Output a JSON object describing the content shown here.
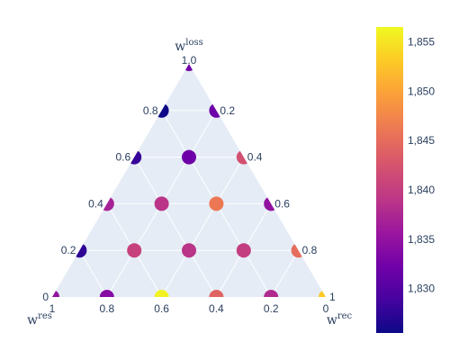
{
  "chart_data": {
    "type": "scatter",
    "subtype": "ternary",
    "axes": {
      "a": {
        "title_base": "w",
        "title_sup": "loss",
        "ticks": [
          "1.0",
          "0.8",
          "0.6",
          "0.4",
          "0.2",
          "0"
        ]
      },
      "b": {
        "title_base": "w",
        "title_sup": "res",
        "ticks": [
          "1",
          "0.8",
          "0.6",
          "0.4",
          "0.2",
          "0"
        ]
      },
      "c": {
        "title_base": "w",
        "title_sup": "rec",
        "ticks": [
          "0.2",
          "0.4",
          "0.6",
          "0.8",
          "1"
        ]
      }
    },
    "points": [
      {
        "a": 1.0,
        "b": 0.0,
        "c": 0.0,
        "value": 1.8325
      },
      {
        "a": 0.8,
        "b": 0.2,
        "c": 0.0,
        "value": 1.8255
      },
      {
        "a": 0.8,
        "b": 0.0,
        "c": 0.2,
        "value": 1.832
      },
      {
        "a": 0.6,
        "b": 0.4,
        "c": 0.0,
        "value": 1.828
      },
      {
        "a": 0.6,
        "b": 0.2,
        "c": 0.2,
        "value": 1.832
      },
      {
        "a": 0.6,
        "b": 0.0,
        "c": 0.4,
        "value": 1.842
      },
      {
        "a": 0.4,
        "b": 0.6,
        "c": 0.0,
        "value": 1.837
      },
      {
        "a": 0.4,
        "b": 0.4,
        "c": 0.2,
        "value": 1.839
      },
      {
        "a": 0.4,
        "b": 0.2,
        "c": 0.4,
        "value": 1.846
      },
      {
        "a": 0.4,
        "b": 0.0,
        "c": 0.6,
        "value": 1.835
      },
      {
        "a": 0.2,
        "b": 0.8,
        "c": 0.0,
        "value": 1.8275
      },
      {
        "a": 0.2,
        "b": 0.6,
        "c": 0.2,
        "value": 1.8405
      },
      {
        "a": 0.2,
        "b": 0.4,
        "c": 0.4,
        "value": 1.839
      },
      {
        "a": 0.2,
        "b": 0.2,
        "c": 0.6,
        "value": 1.84
      },
      {
        "a": 0.2,
        "b": 0.0,
        "c": 0.8,
        "value": 1.845
      },
      {
        "a": 0.0,
        "b": 1.0,
        "c": 0.0,
        "value": 1.835
      },
      {
        "a": 0.0,
        "b": 0.8,
        "c": 0.2,
        "value": 1.834
      },
      {
        "a": 0.0,
        "b": 0.6,
        "c": 0.4,
        "value": 1.856
      },
      {
        "a": 0.0,
        "b": 0.4,
        "c": 0.6,
        "value": 1.844
      },
      {
        "a": 0.0,
        "b": 0.2,
        "c": 0.8,
        "value": 1.838
      },
      {
        "a": 0.0,
        "b": 0.0,
        "c": 1.0,
        "value": 1.853
      }
    ],
    "colorbar": {
      "min": 1.8255,
      "max": 1.8565,
      "ticks": [
        "1,830",
        "1,835",
        "1,840",
        "1,845",
        "1,850",
        "1,855"
      ],
      "tick_values": [
        1.83,
        1.835,
        1.84,
        1.845,
        1.85,
        1.855
      ],
      "colorscale": "Plasma"
    },
    "colors": {
      "plot_bg": "#e5ecf6",
      "grid": "#ffffff",
      "text": "#2a3f5f"
    }
  }
}
